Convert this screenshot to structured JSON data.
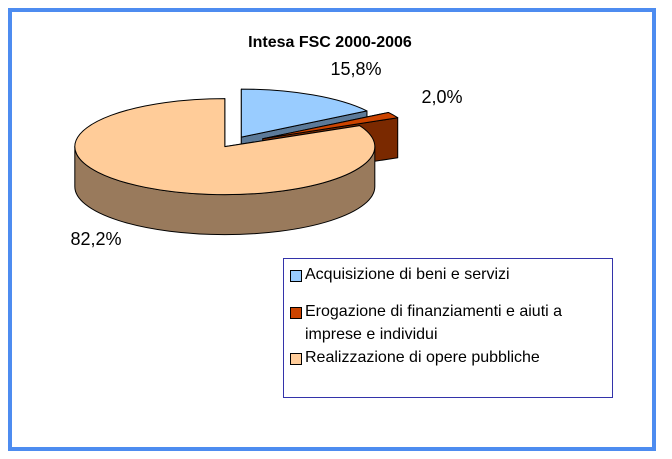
{
  "chart_data": {
    "type": "pie",
    "title": "Intesa FSC 2000-2006",
    "categories": [
      "Acquisizione  di beni e servizi",
      "Erogazione di finanziamenti e aiuti a imprese e individui",
      "Realizzazione di opere pubbliche"
    ],
    "values": [
      15.8,
      2.0,
      82.2
    ],
    "value_labels": [
      "15,8%",
      "2,0%",
      "82,2%"
    ],
    "colors": [
      "#99ccff",
      "#cc4400",
      "#ffcc99"
    ]
  }
}
